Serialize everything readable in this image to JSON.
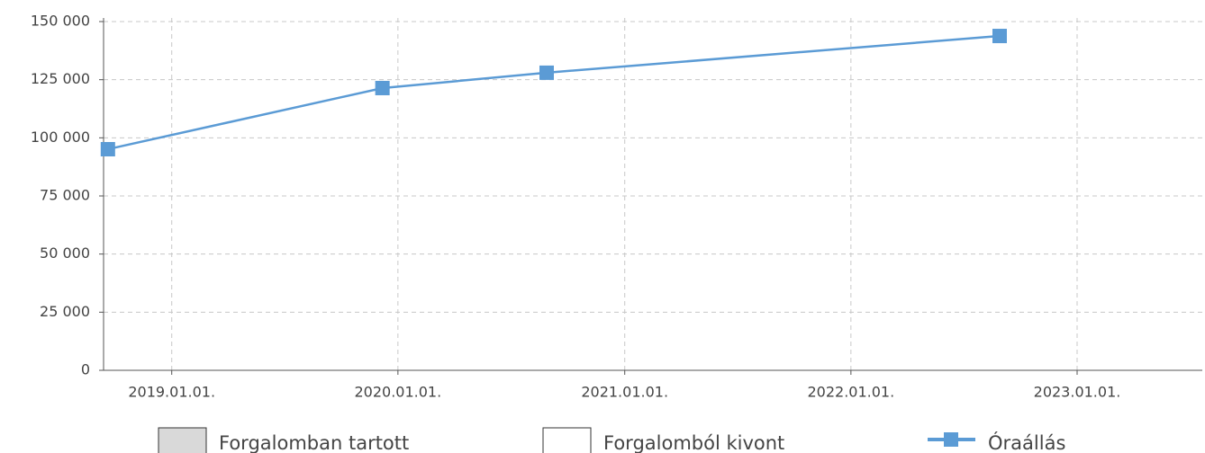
{
  "chart_data": {
    "type": "line",
    "xlim": [
      "2018-09-13",
      "2023-07-22"
    ],
    "xticks": [
      {
        "value": "2019-01-01",
        "label": "2019.01.01."
      },
      {
        "value": "2020-01-01",
        "label": "2020.01.01."
      },
      {
        "value": "2021-01-01",
        "label": "2021.01.01."
      },
      {
        "value": "2022-01-01",
        "label": "2022.01.01."
      },
      {
        "value": "2023-01-01",
        "label": "2023.01.01."
      }
    ],
    "ylim": [
      0,
      150000
    ],
    "yticks": [
      0,
      {
        "value": 25000,
        "label": "25 000"
      },
      {
        "value": 50000,
        "label": "50 000"
      },
      {
        "value": 75000,
        "label": "75 000"
      },
      {
        "value": 100000,
        "label": "100 000"
      },
      {
        "value": 125000,
        "label": "125 000"
      },
      {
        "value": 150000,
        "label": "150 000"
      }
    ],
    "grid": true,
    "legend_entries": [
      {
        "name": "Forgalomban tartott",
        "color": "#d9d9d9"
      },
      {
        "name": "Forgalomból kivont",
        "color": "#ffffff"
      }
    ],
    "series": [
      {
        "name": "Óraállás",
        "color": "#5b9bd5",
        "x": [
          "2018-09-20",
          "2019-12-07",
          "2020-08-28",
          "2022-08-29"
        ],
        "values": [
          95100,
          121400,
          128000,
          143800
        ]
      }
    ]
  }
}
